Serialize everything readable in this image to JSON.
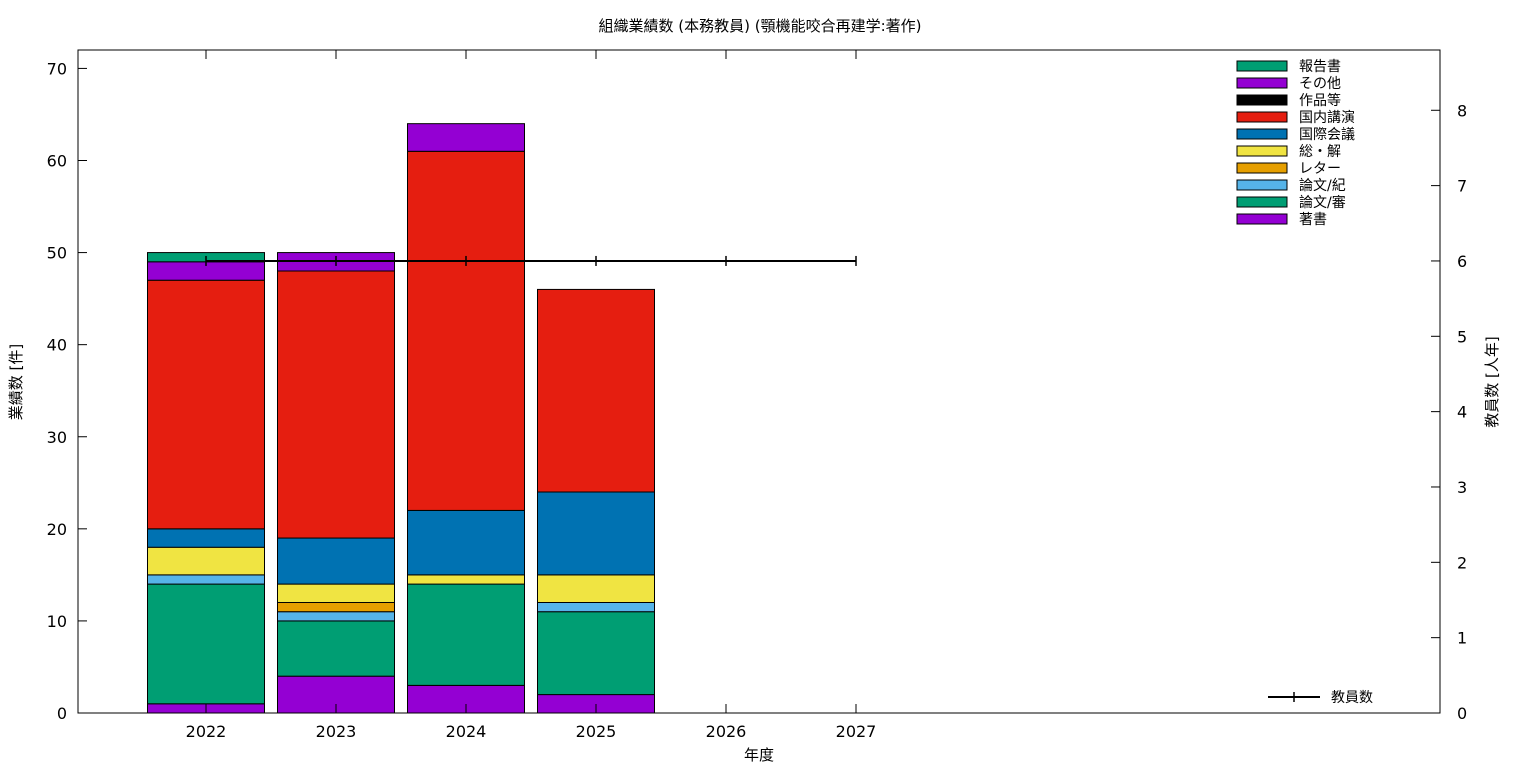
{
  "chart_data": {
    "type": "bar",
    "title": "組織業績数 (本務教員) (顎機能咬合再建学:著作)",
    "xlabel": "年度",
    "ylabel": "業績数 [件]",
    "y2label": "教員数 [人年]",
    "categories": [
      "2022",
      "2023",
      "2024",
      "2025",
      "2026",
      "2027"
    ],
    "ylim": [
      0,
      72
    ],
    "y2lim": [
      0,
      8.8
    ],
    "yticks": [
      "0",
      "10",
      "20",
      "30",
      "40",
      "50",
      "60",
      "70"
    ],
    "y2ticks": [
      "0",
      "1",
      "2",
      "3",
      "4",
      "5",
      "6",
      "7",
      "8"
    ],
    "stacked": true,
    "series": [
      {
        "name": "著書",
        "color": "#9400d3",
        "values": [
          1,
          4,
          3,
          2,
          0,
          0
        ]
      },
      {
        "name": "論文/審",
        "color": "#009e73",
        "values": [
          13,
          6,
          11,
          9,
          0,
          0
        ]
      },
      {
        "name": "論文/紀",
        "color": "#56b4e9",
        "values": [
          1,
          1,
          0,
          1,
          0,
          0
        ]
      },
      {
        "name": "レター",
        "color": "#e69f00",
        "values": [
          0,
          1,
          0,
          0,
          0,
          0
        ]
      },
      {
        "name": "総・解",
        "color": "#f0e442",
        "values": [
          3,
          2,
          1,
          3,
          0,
          0
        ]
      },
      {
        "name": "国際会議",
        "color": "#0072b2",
        "values": [
          2,
          5,
          7,
          9,
          0,
          0
        ]
      },
      {
        "name": "国内講演",
        "color": "#e51e10",
        "values": [
          27,
          29,
          39,
          22,
          0,
          0
        ]
      },
      {
        "name": "作品等",
        "color": "#000000",
        "values": [
          0,
          0,
          0,
          0,
          0,
          0
        ]
      },
      {
        "name": "その他",
        "color": "#9400d3",
        "values": [
          2,
          2,
          3,
          0,
          0,
          0
        ]
      },
      {
        "name": "報告書",
        "color": "#009e73",
        "values": [
          1,
          0,
          0,
          0,
          0,
          0
        ]
      }
    ],
    "line_series": {
      "name": "教員数",
      "color": "#000000",
      "values": [
        6,
        6,
        6,
        6,
        6,
        6
      ]
    },
    "legend": "top-right",
    "grid": false
  }
}
